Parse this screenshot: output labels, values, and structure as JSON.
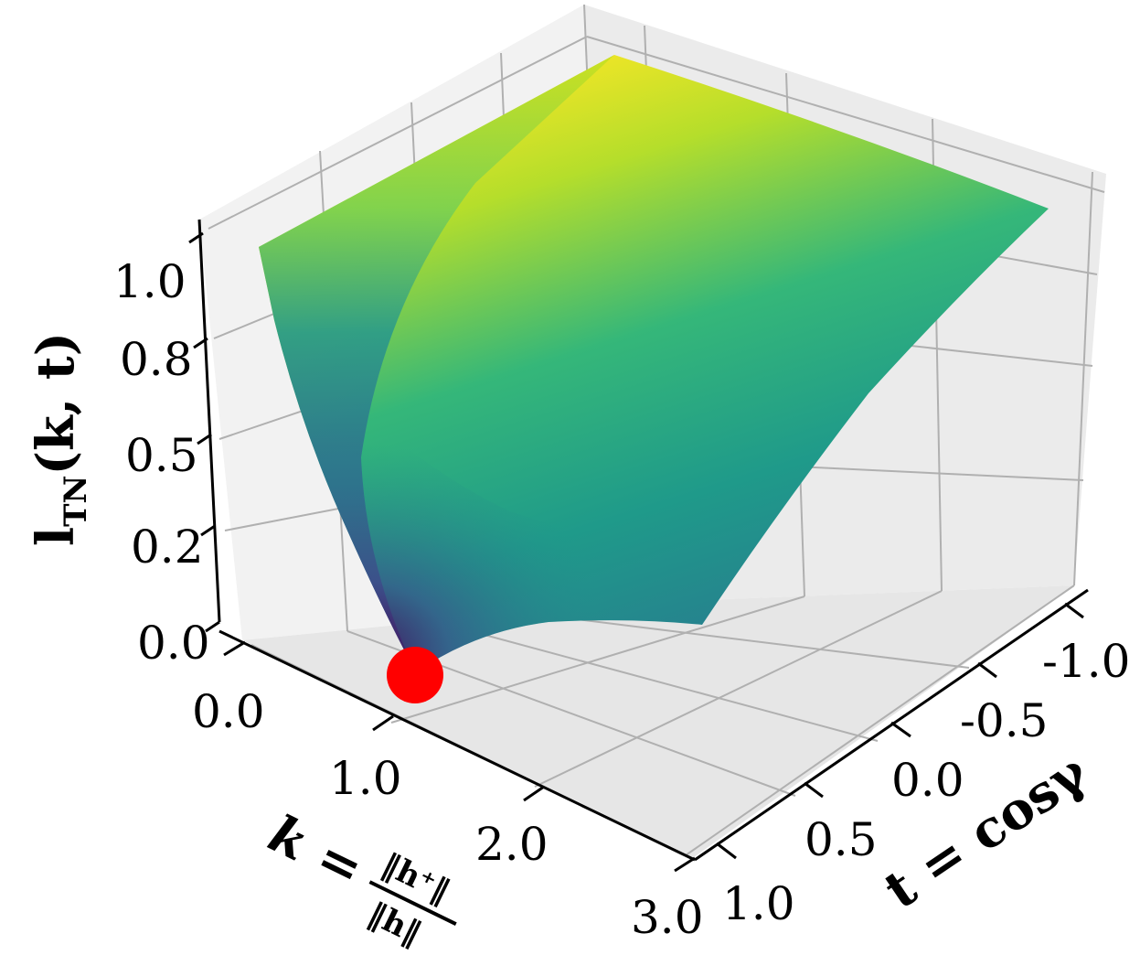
{
  "chart_data": {
    "type": "surface3d",
    "title": "",
    "xlabel": "k = ‖h⁺‖ / ‖h‖",
    "xlabel_parts": {
      "lhs": "k =",
      "num": "‖h⁺‖",
      "den": "‖h‖"
    },
    "ylabel": "t = cosγ",
    "zlabel": "l_TN(k, t)",
    "zlabel_parts": {
      "main": "l",
      "sub": "TN",
      "args": "(k, t)"
    },
    "x_ticks": [
      "0.0",
      "1.0",
      "2.0",
      "3.0"
    ],
    "y_ticks": [
      "-1.0",
      "-0.5",
      "0.0",
      "0.5",
      "1.0"
    ],
    "z_ticks": [
      "0.0",
      "0.2",
      "0.5",
      "0.8",
      "1.0"
    ],
    "xlim": [
      0,
      3
    ],
    "ylim": [
      -1,
      1
    ],
    "zlim": [
      0,
      1.05
    ],
    "colormap": "viridis",
    "grid": true,
    "surface_corners": [
      {
        "k": 0,
        "t": -1,
        "z": 1.0
      },
      {
        "k": 0,
        "t": 1,
        "z": 1.0
      },
      {
        "k": 3,
        "t": -1,
        "z": 1.0
      },
      {
        "k": 3,
        "t": 1,
        "z": 0.02
      }
    ],
    "marker": {
      "k": 1.0,
      "t": 1.0,
      "z": 0.0,
      "color": "#ff0000"
    }
  }
}
